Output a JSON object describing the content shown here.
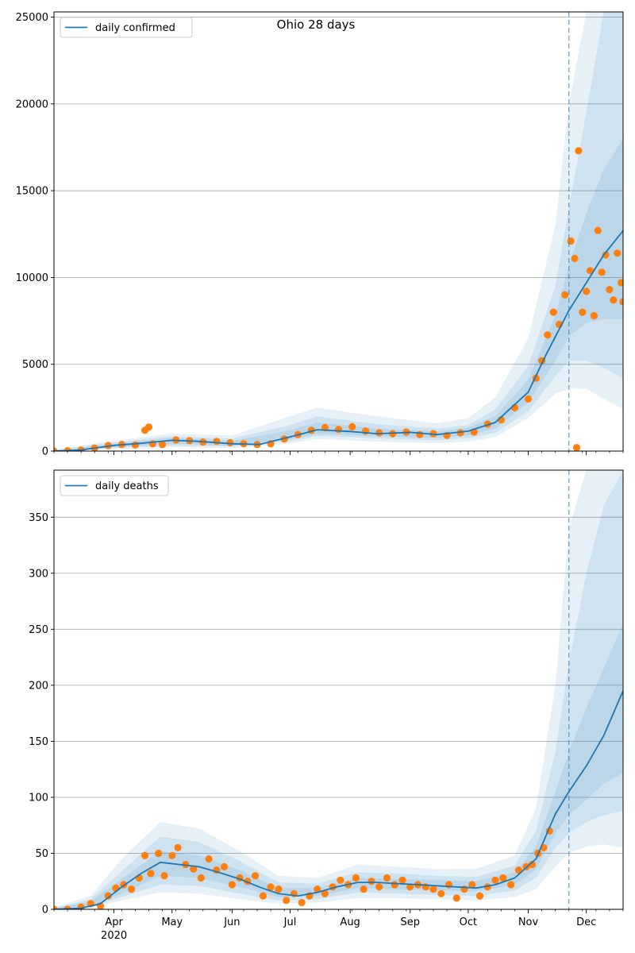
{
  "title": "Ohio 28 days",
  "colors": {
    "line": "#1f77b4",
    "points": "#ff7f0e",
    "band": "#1f77b4",
    "grid": "#b0b0b0",
    "vline": "#1f77b4"
  },
  "chart_data": [
    {
      "type": "line",
      "title": "Ohio 28 days",
      "legend": "daily confirmed",
      "legend_position": "top-left",
      "ylim": [
        0,
        25300
      ],
      "yticks": [
        0,
        5000,
        10000,
        15000,
        20000,
        25000
      ],
      "grid": "horizontal",
      "forecast_start": "2020-11-22",
      "series": [
        {
          "name": "daily confirmed",
          "x": [
            "2020-03-01",
            "2020-03-15",
            "2020-04-01",
            "2020-04-15",
            "2020-05-01",
            "2020-05-15",
            "2020-06-01",
            "2020-06-15",
            "2020-07-01",
            "2020-07-15",
            "2020-08-01",
            "2020-08-15",
            "2020-09-01",
            "2020-09-15",
            "2020-10-01",
            "2020-10-15",
            "2020-11-01",
            "2020-11-10",
            "2020-11-22",
            "2020-12-01",
            "2020-12-10",
            "2020-12-20"
          ],
          "values": [
            0,
            60,
            330,
            450,
            620,
            560,
            420,
            380,
            820,
            1230,
            1130,
            1000,
            1080,
            950,
            1150,
            1650,
            3400,
            5500,
            8100,
            9700,
            11300,
            12700
          ]
        }
      ],
      "bands": [
        {
          "x": [
            "2020-03-01",
            "2020-04-01",
            "2020-05-01",
            "2020-06-01",
            "2020-07-01",
            "2020-07-15",
            "2020-08-15",
            "2020-09-15",
            "2020-10-01",
            "2020-10-15",
            "2020-11-01",
            "2020-11-15",
            "2020-11-22",
            "2020-12-01",
            "2020-12-10",
            "2020-12-20"
          ],
          "lower": [
            0,
            120,
            220,
            180,
            450,
            700,
            550,
            450,
            550,
            800,
            1900,
            3300,
            3600,
            3600,
            3000,
            2400
          ],
          "upper": [
            60,
            600,
            1000,
            900,
            2000,
            2500,
            2000,
            1600,
            1900,
            3100,
            6500,
            13000,
            20000,
            25300,
            25300,
            25300
          ]
        },
        {
          "x": [
            "2020-03-01",
            "2020-04-01",
            "2020-05-01",
            "2020-06-01",
            "2020-07-01",
            "2020-07-15",
            "2020-08-15",
            "2020-09-15",
            "2020-10-01",
            "2020-10-15",
            "2020-11-01",
            "2020-11-15",
            "2020-11-22",
            "2020-12-01",
            "2020-12-10",
            "2020-12-20"
          ],
          "lower": [
            0,
            170,
            320,
            260,
            580,
            880,
            730,
            620,
            750,
            1050,
            2300,
            4300,
            5200,
            5200,
            4800,
            4200
          ],
          "upper": [
            40,
            500,
            850,
            720,
            1500,
            2000,
            1550,
            1300,
            1500,
            2400,
            4900,
            9500,
            14000,
            19500,
            25300,
            25300
          ]
        },
        {
          "x": [
            "2020-03-01",
            "2020-04-01",
            "2020-05-01",
            "2020-06-01",
            "2020-07-01",
            "2020-07-15",
            "2020-08-15",
            "2020-09-15",
            "2020-10-01",
            "2020-10-15",
            "2020-11-01",
            "2020-11-15",
            "2020-11-22",
            "2020-12-01",
            "2020-12-10",
            "2020-12-20"
          ],
          "lower": [
            0,
            230,
            420,
            330,
            680,
            1000,
            860,
            760,
            900,
            1300,
            2800,
            5200,
            6600,
            7400,
            7600,
            7600
          ],
          "upper": [
            25,
            420,
            760,
            580,
            1200,
            1650,
            1300,
            1120,
            1350,
            2000,
            4100,
            7800,
            10700,
            13700,
            16200,
            18000
          ]
        }
      ],
      "observed": {
        "x": [
          "2020-03-01",
          "2020-03-08",
          "2020-03-15",
          "2020-03-22",
          "2020-03-29",
          "2020-04-05",
          "2020-04-12",
          "2020-04-17",
          "2020-04-19",
          "2020-04-21",
          "2020-04-26",
          "2020-05-03",
          "2020-05-10",
          "2020-05-17",
          "2020-05-24",
          "2020-05-31",
          "2020-06-07",
          "2020-06-14",
          "2020-06-21",
          "2020-06-28",
          "2020-07-05",
          "2020-07-12",
          "2020-07-19",
          "2020-07-26",
          "2020-08-02",
          "2020-08-09",
          "2020-08-16",
          "2020-08-23",
          "2020-08-30",
          "2020-09-06",
          "2020-09-13",
          "2020-09-20",
          "2020-09-27",
          "2020-10-04",
          "2020-10-11",
          "2020-10-18",
          "2020-10-25",
          "2020-11-01",
          "2020-11-05",
          "2020-11-08",
          "2020-11-11",
          "2020-11-14",
          "2020-11-17",
          "2020-11-20",
          "2020-11-23",
          "2020-11-25",
          "2020-11-26",
          "2020-11-27",
          "2020-11-29",
          "2020-12-01",
          "2020-12-03",
          "2020-12-05",
          "2020-12-07",
          "2020-12-09",
          "2020-12-11",
          "2020-12-13",
          "2020-12-15",
          "2020-12-17",
          "2020-12-19",
          "2020-12-20"
        ],
        "values": [
          0,
          20,
          60,
          180,
          320,
          380,
          350,
          1200,
          1380,
          420,
          380,
          640,
          600,
          520,
          560,
          480,
          420,
          380,
          420,
          700,
          950,
          1200,
          1350,
          1250,
          1400,
          1150,
          1050,
          1000,
          1100,
          950,
          1000,
          900,
          1050,
          1100,
          1550,
          1800,
          2500,
          3000,
          4200,
          5200,
          6700,
          8000,
          7300,
          9000,
          12100,
          11100,
          200,
          17300,
          8000,
          9200,
          10400,
          7800,
          12700,
          10300,
          11300,
          9300,
          8700,
          11400,
          9700,
          8600
        ]
      }
    },
    {
      "type": "line",
      "legend": "daily deaths",
      "legend_position": "top-left",
      "xlim": [
        "2020-03-01",
        "2020-12-20"
      ],
      "xticks": [
        "Apr",
        "May",
        "Jun",
        "Jul",
        "Aug",
        "Sep",
        "Oct",
        "Nov",
        "Dec"
      ],
      "xtick_dates": [
        "2020-04-01",
        "2020-05-01",
        "2020-06-01",
        "2020-07-01",
        "2020-08-01",
        "2020-09-01",
        "2020-10-01",
        "2020-11-01",
        "2020-12-01"
      ],
      "year_label": "2020",
      "ylim": [
        0,
        392
      ],
      "yticks": [
        0,
        50,
        100,
        150,
        200,
        250,
        300,
        350
      ],
      "grid": "horizontal",
      "forecast_start": "2020-11-22",
      "series": [
        {
          "name": "daily deaths",
          "x": [
            "2020-03-01",
            "2020-03-15",
            "2020-03-25",
            "2020-04-05",
            "2020-04-15",
            "2020-04-25",
            "2020-05-05",
            "2020-05-15",
            "2020-05-25",
            "2020-06-05",
            "2020-06-15",
            "2020-06-25",
            "2020-07-05",
            "2020-07-15",
            "2020-07-25",
            "2020-08-05",
            "2020-08-15",
            "2020-08-25",
            "2020-09-05",
            "2020-09-15",
            "2020-09-25",
            "2020-10-05",
            "2020-10-15",
            "2020-10-25",
            "2020-11-05",
            "2020-11-15",
            "2020-11-22",
            "2020-12-01",
            "2020-12-10",
            "2020-12-20"
          ],
          "values": [
            0,
            1,
            5,
            20,
            32,
            42,
            40,
            38,
            33,
            27,
            20,
            14,
            12,
            15,
            20,
            24,
            24,
            23,
            22,
            21,
            20,
            19,
            22,
            28,
            45,
            85,
            105,
            128,
            155,
            195
          ]
        }
      ],
      "bands": [
        {
          "x": [
            "2020-03-01",
            "2020-03-20",
            "2020-04-05",
            "2020-04-25",
            "2020-05-15",
            "2020-06-05",
            "2020-06-25",
            "2020-07-15",
            "2020-08-05",
            "2020-08-25",
            "2020-09-15",
            "2020-10-05",
            "2020-10-25",
            "2020-11-05",
            "2020-11-15",
            "2020-11-22",
            "2020-12-01",
            "2020-12-10",
            "2020-12-20"
          ],
          "lower": [
            0,
            1,
            8,
            15,
            14,
            9,
            5,
            6,
            10,
            10,
            9,
            8,
            11,
            18,
            38,
            50,
            56,
            58,
            55
          ],
          "upper": [
            2,
            12,
            45,
            78,
            72,
            52,
            30,
            28,
            40,
            38,
            36,
            36,
            48,
            90,
            200,
            340,
            392,
            392,
            392
          ]
        },
        {
          "x": [
            "2020-03-01",
            "2020-03-20",
            "2020-04-05",
            "2020-04-25",
            "2020-05-15",
            "2020-06-05",
            "2020-06-25",
            "2020-07-15",
            "2020-08-05",
            "2020-08-25",
            "2020-09-15",
            "2020-10-05",
            "2020-10-25",
            "2020-11-05",
            "2020-11-15",
            "2020-11-22",
            "2020-12-01",
            "2020-12-10",
            "2020-12-20"
          ],
          "lower": [
            0,
            2,
            11,
            22,
            21,
            14,
            8,
            9,
            15,
            14,
            13,
            12,
            17,
            28,
            55,
            68,
            78,
            84,
            88
          ],
          "upper": [
            1,
            9,
            34,
            65,
            60,
            43,
            24,
            23,
            33,
            32,
            30,
            29,
            39,
            70,
            140,
            220,
            300,
            360,
            392
          ]
        },
        {
          "x": [
            "2020-03-01",
            "2020-03-20",
            "2020-04-05",
            "2020-04-25",
            "2020-05-15",
            "2020-06-05",
            "2020-06-25",
            "2020-07-15",
            "2020-08-05",
            "2020-08-25",
            "2020-09-15",
            "2020-10-05",
            "2020-10-25",
            "2020-11-05",
            "2020-11-15",
            "2020-11-22",
            "2020-12-01",
            "2020-12-10",
            "2020-12-20"
          ],
          "lower": [
            0,
            3,
            14,
            30,
            28,
            20,
            11,
            12,
            19,
            18,
            17,
            16,
            22,
            36,
            68,
            84,
            98,
            112,
            122
          ],
          "upper": [
            1,
            7,
            27,
            52,
            48,
            35,
            19,
            19,
            28,
            27,
            26,
            25,
            33,
            56,
            105,
            140,
            180,
            215,
            255
          ]
        }
      ],
      "observed": {
        "x": [
          "2020-03-01",
          "2020-03-08",
          "2020-03-15",
          "2020-03-20",
          "2020-03-25",
          "2020-03-29",
          "2020-04-02",
          "2020-04-06",
          "2020-04-10",
          "2020-04-14",
          "2020-04-17",
          "2020-04-20",
          "2020-04-24",
          "2020-04-27",
          "2020-05-01",
          "2020-05-04",
          "2020-05-08",
          "2020-05-12",
          "2020-05-16",
          "2020-05-20",
          "2020-05-24",
          "2020-05-28",
          "2020-06-01",
          "2020-06-05",
          "2020-06-09",
          "2020-06-13",
          "2020-06-17",
          "2020-06-21",
          "2020-06-25",
          "2020-06-29",
          "2020-07-03",
          "2020-07-07",
          "2020-07-11",
          "2020-07-15",
          "2020-07-19",
          "2020-07-23",
          "2020-07-27",
          "2020-07-31",
          "2020-08-04",
          "2020-08-08",
          "2020-08-12",
          "2020-08-16",
          "2020-08-20",
          "2020-08-24",
          "2020-08-28",
          "2020-09-01",
          "2020-09-05",
          "2020-09-09",
          "2020-09-13",
          "2020-09-17",
          "2020-09-21",
          "2020-09-25",
          "2020-09-29",
          "2020-10-03",
          "2020-10-07",
          "2020-10-11",
          "2020-10-15",
          "2020-10-19",
          "2020-10-23",
          "2020-10-27",
          "2020-10-31",
          "2020-11-03",
          "2020-11-06",
          "2020-11-09",
          "2020-11-12"
        ],
        "values": [
          0,
          0,
          2,
          5,
          3,
          12,
          19,
          22,
          18,
          28,
          48,
          32,
          50,
          30,
          48,
          55,
          40,
          36,
          28,
          45,
          35,
          38,
          22,
          28,
          25,
          30,
          12,
          20,
          18,
          8,
          14,
          6,
          12,
          18,
          14,
          20,
          26,
          22,
          28,
          18,
          25,
          20,
          28,
          22,
          26,
          20,
          22,
          20,
          18,
          14,
          22,
          10,
          18,
          22,
          12,
          20,
          26,
          28,
          22,
          35,
          38,
          40,
          50,
          55,
          70
        ]
      }
    }
  ]
}
